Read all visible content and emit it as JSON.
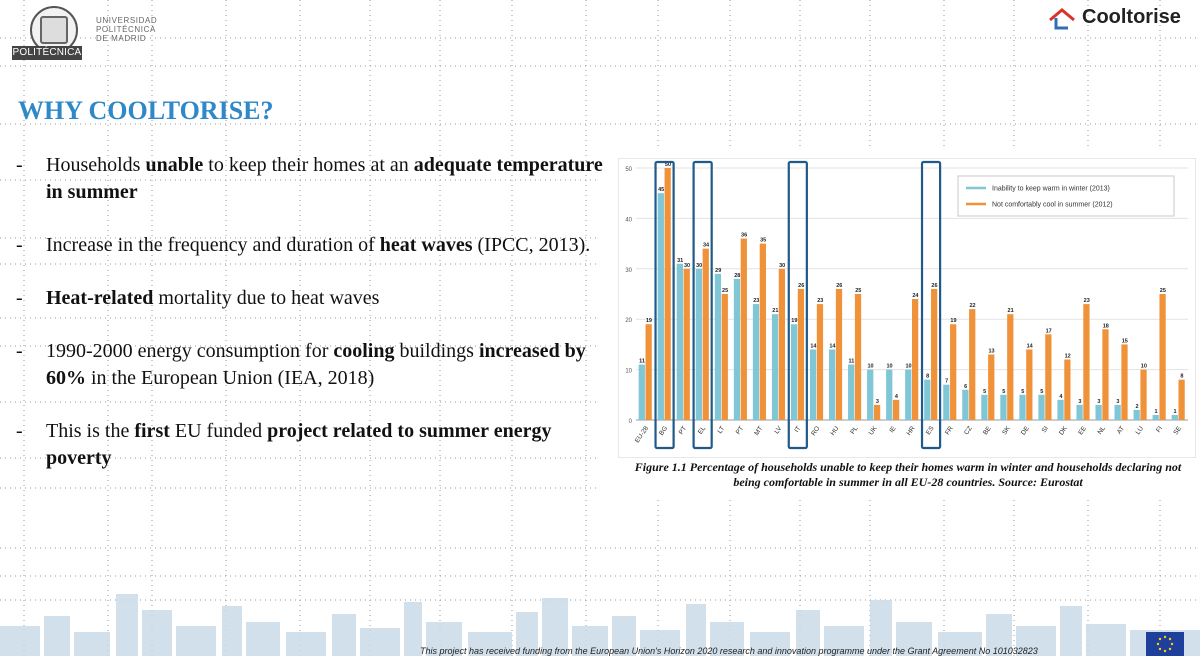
{
  "header": {
    "university_lines": [
      "UNIVERSIDAD",
      "POLITÉCNICA",
      "DE MADRID"
    ],
    "university_bar": "POLITÉCNICA",
    "project_logo": "Cooltorise"
  },
  "slide": {
    "title": "WHY COOLTORISE?",
    "bullets": [
      {
        "parts": [
          {
            "t": "Households ",
            "b": false
          },
          {
            "t": "unable",
            "b": true
          },
          {
            "t": " to keep their homes at an ",
            "b": false
          },
          {
            "t": "adequate temperature in summer",
            "b": true
          }
        ]
      },
      {
        "parts": [
          {
            "t": "Increase in the frequency and duration of ",
            "b": false
          },
          {
            "t": "heat waves",
            "b": true
          },
          {
            "t": " (IPCC, 2013).",
            "b": false
          }
        ]
      },
      {
        "parts": [
          {
            "t": "Heat-related",
            "b": true
          },
          {
            "t": " mortality due to heat waves",
            "b": false
          }
        ]
      },
      {
        "parts": [
          {
            "t": "1990-2000 energy consumption for ",
            "b": false
          },
          {
            "t": "cooling",
            "b": true
          },
          {
            "t": " buildings ",
            "b": false
          },
          {
            "t": "increased by 60%",
            "b": true
          },
          {
            "t": " in the European Union (IEA, 2018)",
            "b": false
          }
        ]
      },
      {
        "parts": [
          {
            "t": "This is the ",
            "b": false
          },
          {
            "t": "first",
            "b": true
          },
          {
            "t": " EU funded ",
            "b": false
          },
          {
            "t": "project related to summer energy poverty",
            "b": true
          }
        ]
      }
    ],
    "figure_caption": "Figure 1.1 Percentage of households unable to keep their homes warm in winter and households declaring not being comfortable in summer in all EU-28 countries. Source: Eurostat",
    "footer": "This project has received funding from the European Union's Horizon 2020 research and innovation programme under the Grant Agreement No 101032823"
  },
  "chart_data": {
    "type": "bar",
    "categories": [
      "EU-28",
      "BG",
      "PT",
      "EL",
      "LT",
      "PT",
      "MT",
      "LV",
      "IT",
      "RO",
      "HU",
      "PL",
      "UK",
      "IE",
      "HR",
      "ES",
      "FR",
      "CZ",
      "BE",
      "SK",
      "DE",
      "SI",
      "DK",
      "EE",
      "NL",
      "AT",
      "LU",
      "FI",
      "SE"
    ],
    "series": [
      {
        "name": "Inability to keep warm in winter (2013)",
        "color": "#7fc6d6",
        "values": [
          11,
          45,
          31,
          30,
          29,
          28,
          23,
          21,
          19,
          14,
          14,
          11,
          10,
          10,
          10,
          8,
          7,
          6,
          5,
          5,
          5,
          5,
          4,
          3,
          3,
          3,
          2,
          1,
          1
        ]
      },
      {
        "name": "Not comfortably cool in summer (2012)",
        "color": "#f0923a",
        "values": [
          19,
          50,
          30,
          34,
          25,
          36,
          35,
          30,
          26,
          23,
          26,
          25,
          3,
          4,
          24,
          26,
          19,
          22,
          13,
          21,
          14,
          17,
          12,
          23,
          18,
          15,
          10,
          25,
          8
        ]
      }
    ],
    "ylim": [
      0,
      50
    ],
    "yticks": [
      0,
      10,
      20,
      30,
      40,
      50
    ],
    "legend_position": "top-right",
    "highlighted_categories": [
      1,
      3,
      8,
      15
    ],
    "highlight_color": "#1f5a8a",
    "grid": true
  }
}
